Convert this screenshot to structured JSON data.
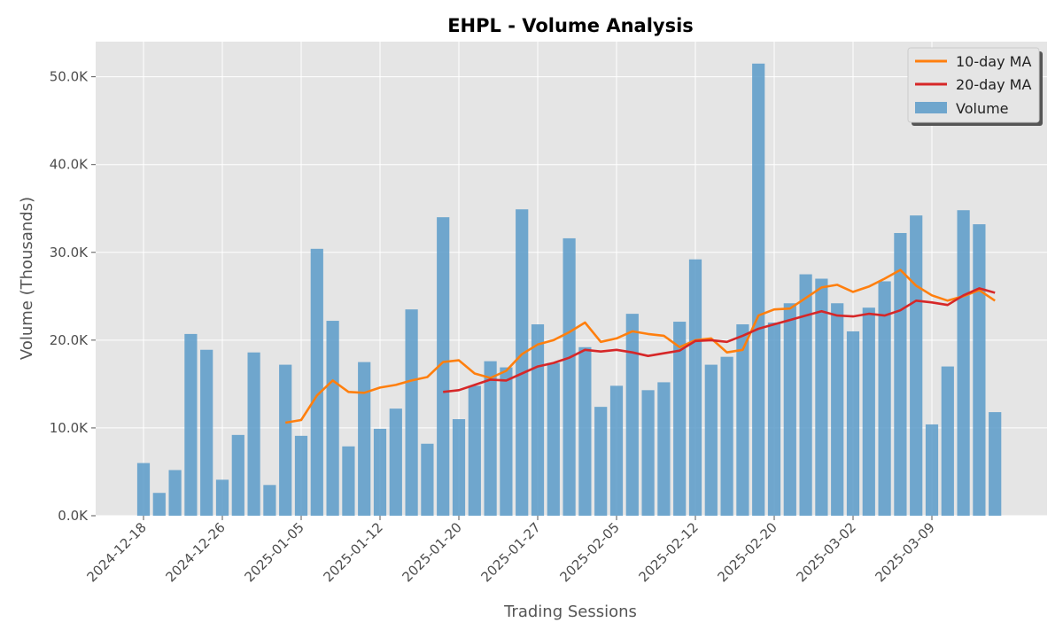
{
  "chart_data": {
    "type": "bar",
    "title": "EHPL - Volume Analysis",
    "xlabel": "Trading Sessions",
    "ylabel": "Volume (Thousands)",
    "ylim": [
      0,
      54000
    ],
    "yticks": [
      0,
      10000,
      20000,
      30000,
      40000,
      50000
    ],
    "ytick_labels": [
      "0.0K",
      "10.0K",
      "20.0K",
      "30.0K",
      "40.0K",
      "50.0K"
    ],
    "xtick_labels": [
      "2024-12-18",
      "2024-12-26",
      "2025-01-05",
      "2025-01-12",
      "2025-01-20",
      "2025-01-27",
      "2025-02-05",
      "2025-02-12",
      "2025-02-20",
      "2025-03-02",
      "2025-03-09"
    ],
    "grid": true,
    "legend_position": "top-right",
    "legend": [
      "10-day MA",
      "20-day MA",
      "Volume"
    ],
    "colors": {
      "volume": "#5b9bc9",
      "ma10": "#ff7f0e",
      "ma20": "#d62728",
      "plot_bg": "#e5e5e5",
      "grid": "#ffffff"
    },
    "series": [
      {
        "name": "Volume",
        "kind": "bar",
        "values": [
          6000,
          2600,
          5200,
          20700,
          18900,
          4100,
          9200,
          18600,
          3500,
          17200,
          9100,
          30400,
          22200,
          7900,
          17500,
          9900,
          12200,
          23500,
          8200,
          34000,
          11000,
          14800,
          17600,
          16900,
          34900,
          21800,
          17400,
          31600,
          19200,
          12400,
          14800,
          23000,
          14300,
          15200,
          22100,
          29200,
          17200,
          18100,
          21800,
          51500,
          22000,
          24200,
          27500,
          27000,
          24200,
          21000,
          23700,
          26700,
          32200,
          34200,
          10400,
          17000,
          34800,
          33200,
          11800
        ]
      },
      {
        "name": "10-day MA",
        "kind": "line",
        "values": [
          null,
          null,
          null,
          null,
          null,
          null,
          null,
          null,
          null,
          10600,
          10900,
          13700,
          15400,
          14100,
          14000,
          14600,
          14900,
          15400,
          15800,
          17500,
          17700,
          16200,
          15700,
          16500,
          18400,
          19500,
          20000,
          20900,
          22000,
          19800,
          20200,
          21000,
          20700,
          20500,
          19200,
          20000,
          20200,
          18600,
          18900,
          22800,
          23500,
          23600,
          24800,
          26000,
          26300,
          25500,
          26100,
          27000,
          28000,
          26200,
          25100,
          24500,
          25000,
          25700,
          24500
        ]
      },
      {
        "name": "20-day MA",
        "kind": "line",
        "values": [
          null,
          null,
          null,
          null,
          null,
          null,
          null,
          null,
          null,
          null,
          null,
          null,
          null,
          null,
          null,
          null,
          null,
          null,
          null,
          14100,
          14300,
          14900,
          15500,
          15400,
          16200,
          17000,
          17400,
          18000,
          18900,
          18700,
          18900,
          18600,
          18200,
          18500,
          18800,
          19900,
          20000,
          19800,
          20500,
          21300,
          21800,
          22300,
          22800,
          23300,
          22800,
          22700,
          23000,
          22800,
          23400,
          24500,
          24300,
          24000,
          25100,
          25900,
          25400
        ]
      }
    ]
  }
}
